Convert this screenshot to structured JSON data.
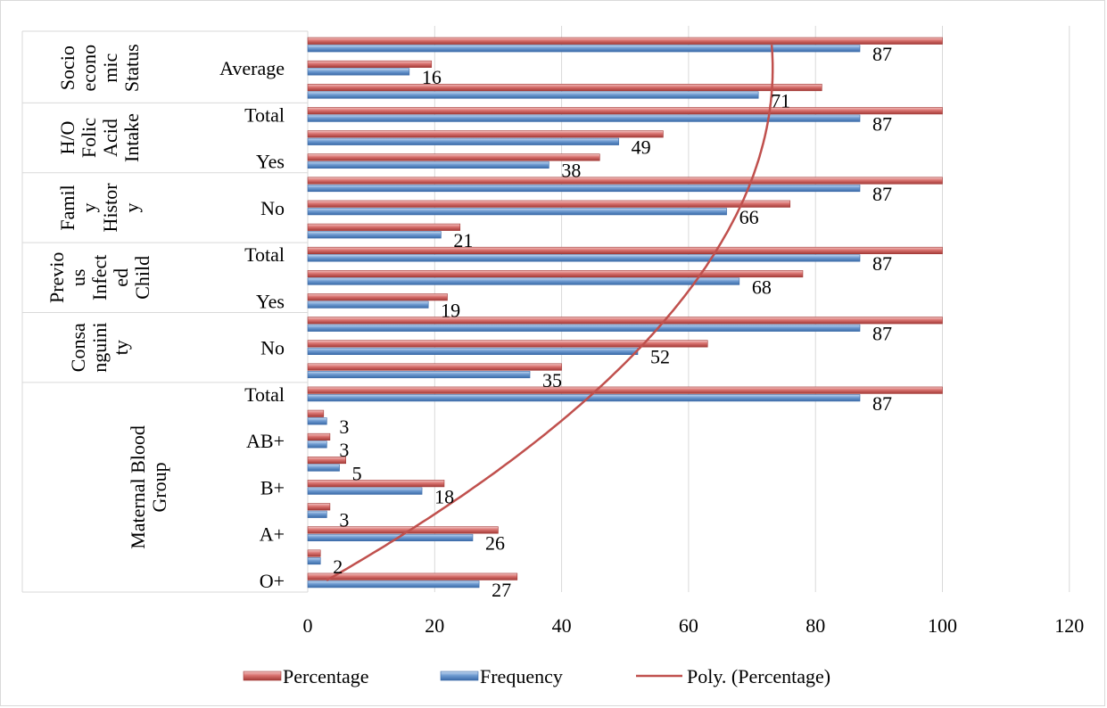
{
  "chart_data": {
    "type": "bar",
    "orientation": "horizontal",
    "xlim": [
      0,
      120
    ],
    "x_ticks": [
      "0",
      "20",
      "40",
      "60",
      "80",
      "100",
      "120"
    ],
    "grid": true,
    "legend_position": "bottom",
    "rows_bottom_to_top": [
      {
        "pct": 33,
        "freq": 27,
        "label": "27"
      },
      {
        "pct": 2,
        "freq": 2,
        "label": "2"
      },
      {
        "pct": 30,
        "freq": 26,
        "label": "26"
      },
      {
        "pct": 3.5,
        "freq": 3,
        "label": "3"
      },
      {
        "pct": 21.5,
        "freq": 18,
        "label": "18"
      },
      {
        "pct": 6,
        "freq": 5,
        "label": "5"
      },
      {
        "pct": 3.5,
        "freq": 3,
        "label": "3"
      },
      {
        "pct": 2.5,
        "freq": 3,
        "label": "3"
      },
      {
        "pct": 100,
        "freq": 87,
        "label": "87"
      },
      {
        "pct": 40,
        "freq": 35,
        "label": "35"
      },
      {
        "pct": 63,
        "freq": 52,
        "label": "52"
      },
      {
        "pct": 100,
        "freq": 87,
        "label": "87"
      },
      {
        "pct": 22,
        "freq": 19,
        "label": "19"
      },
      {
        "pct": 78,
        "freq": 68,
        "label": "68"
      },
      {
        "pct": 100,
        "freq": 87,
        "label": "87"
      },
      {
        "pct": 24,
        "freq": 21,
        "label": "21"
      },
      {
        "pct": 76,
        "freq": 66,
        "label": "66"
      },
      {
        "pct": 100,
        "freq": 87,
        "label": "87"
      },
      {
        "pct": 46,
        "freq": 38,
        "label": "38"
      },
      {
        "pct": 56,
        "freq": 49,
        "label": "49"
      },
      {
        "pct": 100,
        "freq": 87,
        "label": "87"
      },
      {
        "pct": 81,
        "freq": 71,
        "label": "71"
      },
      {
        "pct": 19.5,
        "freq": 16,
        "label": "16"
      },
      {
        "pct": 100,
        "freq": 87,
        "label": "87"
      }
    ],
    "category_labels": [
      {
        "row": 0,
        "text": "O+"
      },
      {
        "row": 2,
        "text": "A+"
      },
      {
        "row": 4,
        "text": "B+"
      },
      {
        "row": 6,
        "text": "AB+"
      },
      {
        "row": 8,
        "text": "Total"
      },
      {
        "row": 10,
        "text": "No"
      },
      {
        "row": 12,
        "text": "Yes"
      },
      {
        "row": 14,
        "text": "Total"
      },
      {
        "row": 16,
        "text": "No"
      },
      {
        "row": 18,
        "text": "Yes"
      },
      {
        "row": 20,
        "text": "Total"
      },
      {
        "row": 22,
        "text": "Average"
      }
    ],
    "groups": [
      {
        "name": "Maternal Blood Group",
        "lines": [
          "Maternal Blood",
          "Group"
        ],
        "rows": [
          0,
          8
        ]
      },
      {
        "name": "Consanguinity",
        "lines": [
          "Consa",
          "nguini",
          "ty"
        ],
        "rows": [
          9,
          11
        ]
      },
      {
        "name": "Previous Infected Child",
        "lines": [
          "Previo",
          "us",
          "Infect",
          "ed",
          "Child"
        ],
        "rows": [
          12,
          14
        ]
      },
      {
        "name": "Family History",
        "lines": [
          "Famil",
          "y",
          "Histor",
          "y"
        ],
        "rows": [
          15,
          17
        ]
      },
      {
        "name": "H/O Folic Acid Intake",
        "lines": [
          "H/O",
          "Folic",
          "Acid",
          "Intake"
        ],
        "rows": [
          18,
          20
        ]
      },
      {
        "name": "Socioeconomic Status",
        "lines": [
          "Socio",
          "econo",
          "mic",
          "Status"
        ],
        "rows": [
          21,
          23
        ]
      }
    ],
    "series": [
      {
        "name": "Percentage",
        "color": "#c0504d"
      },
      {
        "name": "Frequency",
        "color": "#4f81bd"
      },
      {
        "name": "Poly. (Percentage)",
        "color": "#c0504d",
        "type": "trendline"
      }
    ]
  }
}
